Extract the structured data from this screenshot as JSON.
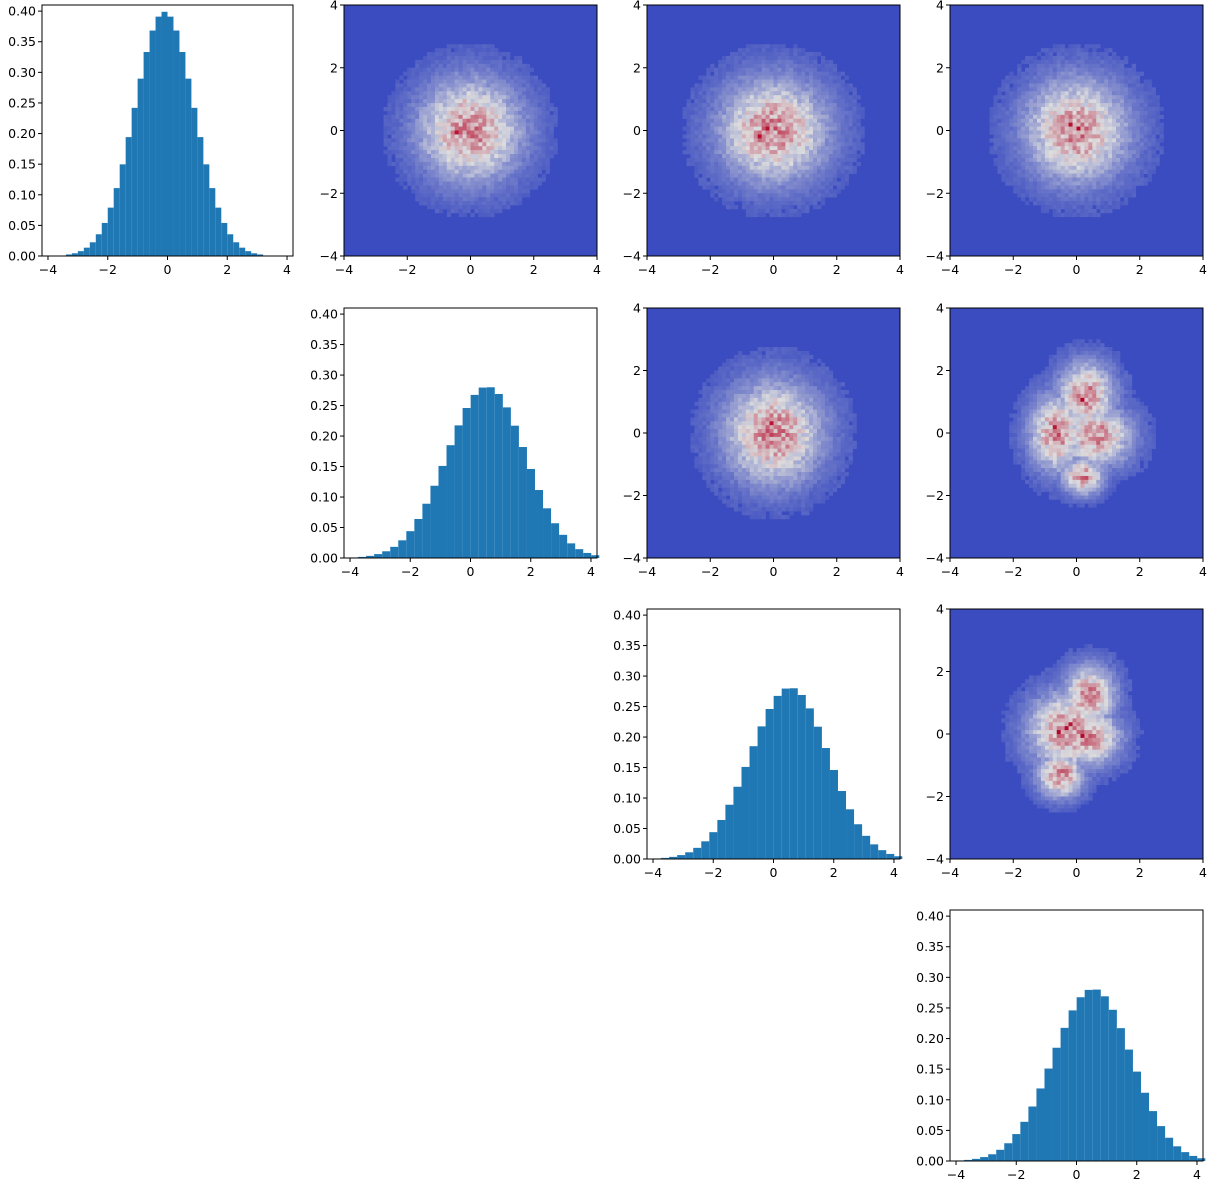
{
  "colors": {
    "hist_bar": "#1f77b4",
    "heatmap_low": "#3b4cc0",
    "heatmap_mid": "#dddddd",
    "heatmap_high": "#b40426"
  },
  "chart_data": [
    {
      "id": "hist-1",
      "type": "bar",
      "row": 0,
      "col": 0,
      "bin_edges_start": -3.6,
      "bin_width": 0.2,
      "values": [
        0.0,
        0.0025,
        0.0044,
        0.0079,
        0.0136,
        0.0224,
        0.0355,
        0.054,
        0.079,
        0.1109,
        0.1497,
        0.1942,
        0.242,
        0.2897,
        0.3332,
        0.3683,
        0.391,
        0.3989,
        0.391,
        0.3683,
        0.3332,
        0.2897,
        0.242,
        0.1942,
        0.1497,
        0.1109,
        0.079,
        0.054,
        0.0355,
        0.0224,
        0.0136,
        0.0079,
        0.0044,
        0.0025,
        0.0
      ],
      "xlim": [
        -4.2,
        4.2
      ],
      "ylim": [
        0,
        0.41
      ],
      "xticks": [
        "−4",
        "−2",
        "0",
        "2",
        "4"
      ],
      "yticks": [
        "0.00",
        "0.05",
        "0.10",
        "0.15",
        "0.20",
        "0.25",
        "0.30",
        "0.35",
        "0.40"
      ]
    },
    {
      "id": "hist-2",
      "type": "bar",
      "row": 1,
      "col": 1,
      "bin_edges_start": -4.0,
      "bin_width": 0.267,
      "values": [
        0.0009,
        0.0018,
        0.0035,
        0.0064,
        0.011,
        0.0183,
        0.029,
        0.044,
        0.064,
        0.089,
        0.1185,
        0.151,
        0.185,
        0.2175,
        0.246,
        0.2675,
        0.2795,
        0.28,
        0.269,
        0.247,
        0.217,
        0.182,
        0.146,
        0.1115,
        0.0815,
        0.057,
        0.038,
        0.024,
        0.0145,
        0.0083,
        0.0045
      ],
      "xlim": [
        -4.2,
        4.2
      ],
      "ylim": [
        0,
        0.41
      ],
      "xticks": [
        "−4",
        "−2",
        "0",
        "2",
        "4"
      ],
      "yticks": [
        "0.00",
        "0.05",
        "0.10",
        "0.15",
        "0.20",
        "0.25",
        "0.30",
        "0.35",
        "0.40"
      ]
    },
    {
      "id": "hist-3",
      "type": "bar",
      "row": 2,
      "col": 2,
      "bin_edges_start": -4.0,
      "bin_width": 0.267,
      "values": [
        0.0009,
        0.0018,
        0.0035,
        0.0064,
        0.011,
        0.0183,
        0.029,
        0.044,
        0.064,
        0.089,
        0.1185,
        0.151,
        0.185,
        0.2175,
        0.246,
        0.2675,
        0.2795,
        0.28,
        0.269,
        0.247,
        0.217,
        0.182,
        0.146,
        0.1115,
        0.0815,
        0.057,
        0.038,
        0.024,
        0.0145,
        0.0083,
        0.0045
      ],
      "xlim": [
        -4.2,
        4.2
      ],
      "ylim": [
        0,
        0.41
      ],
      "xticks": [
        "−4",
        "−2",
        "0",
        "2",
        "4"
      ],
      "yticks": [
        "0.00",
        "0.05",
        "0.10",
        "0.15",
        "0.20",
        "0.25",
        "0.30",
        "0.35",
        "0.40"
      ]
    },
    {
      "id": "hist-4",
      "type": "bar",
      "row": 3,
      "col": 3,
      "bin_edges_start": -4.0,
      "bin_width": 0.267,
      "values": [
        0.0009,
        0.0018,
        0.0035,
        0.0064,
        0.011,
        0.0183,
        0.029,
        0.044,
        0.064,
        0.089,
        0.1185,
        0.151,
        0.185,
        0.2175,
        0.246,
        0.2675,
        0.2795,
        0.28,
        0.269,
        0.247,
        0.217,
        0.182,
        0.146,
        0.1115,
        0.0815,
        0.057,
        0.038,
        0.024,
        0.0145,
        0.0083,
        0.0045
      ],
      "xlim": [
        -4.2,
        4.2
      ],
      "ylim": [
        0,
        0.41
      ],
      "xticks": [
        "−4",
        "−2",
        "0",
        "2",
        "4"
      ],
      "yticks": [
        "0.00",
        "0.05",
        "0.10",
        "0.15",
        "0.20",
        "0.25",
        "0.30",
        "0.35",
        "0.40"
      ]
    },
    {
      "id": "heatmap-1-2",
      "type": "heatmap",
      "row": 0,
      "col": 1,
      "xlim": [
        -4,
        4
      ],
      "ylim": [
        -4,
        4
      ],
      "bins": 64,
      "structure": [
        {
          "center": [
            0,
            0
          ],
          "sigma": [
            1.0,
            1.0
          ]
        }
      ],
      "xticks": [
        "−4",
        "−2",
        "0",
        "2",
        "4"
      ],
      "yticks": [
        "−4",
        "−2",
        "0",
        "2",
        "4"
      ]
    },
    {
      "id": "heatmap-1-3",
      "type": "heatmap",
      "row": 0,
      "col": 2,
      "xlim": [
        -4,
        4
      ],
      "ylim": [
        -4,
        4
      ],
      "bins": 64,
      "structure": [
        {
          "center": [
            0,
            0
          ],
          "sigma": [
            1.05,
            1.0
          ]
        }
      ],
      "xticks": [
        "−4",
        "−2",
        "0",
        "2",
        "4"
      ],
      "yticks": [
        "−4",
        "−2",
        "0",
        "2",
        "4"
      ]
    },
    {
      "id": "heatmap-1-4",
      "type": "heatmap",
      "row": 0,
      "col": 3,
      "xlim": [
        -4,
        4
      ],
      "ylim": [
        -4,
        4
      ],
      "bins": 64,
      "structure": [
        {
          "center": [
            0,
            0
          ],
          "sigma": [
            1.0,
            1.0
          ]
        }
      ],
      "xticks": [
        "−4",
        "−2",
        "0",
        "2",
        "4"
      ],
      "yticks": [
        "−4",
        "−2",
        "0",
        "2",
        "4"
      ]
    },
    {
      "id": "heatmap-2-3",
      "type": "heatmap",
      "row": 1,
      "col": 2,
      "xlim": [
        -4,
        4
      ],
      "ylim": [
        -4,
        4
      ],
      "bins": 64,
      "structure": [
        {
          "center": [
            0,
            0
          ],
          "sigma": [
            0.95,
            1.0
          ]
        }
      ],
      "xticks": [
        "−4",
        "−2",
        "0",
        "2",
        "4"
      ],
      "yticks": [
        "−4",
        "−2",
        "0",
        "2",
        "4"
      ]
    },
    {
      "id": "heatmap-2-4",
      "type": "heatmap",
      "row": 1,
      "col": 3,
      "xlim": [
        -4,
        4
      ],
      "ylim": [
        -4,
        4
      ],
      "bins": 64,
      "structure": [
        {
          "center": [
            -0.6,
            0.0
          ],
          "sigma": [
            0.55,
            0.75
          ]
        },
        {
          "center": [
            0.3,
            1.2
          ],
          "sigma": [
            0.55,
            0.65
          ]
        },
        {
          "center": [
            0.2,
            -1.4
          ],
          "sigma": [
            0.4,
            0.35
          ]
        },
        {
          "center": [
            0.6,
            -0.1
          ],
          "sigma": [
            0.7,
            0.6
          ]
        }
      ],
      "xticks": [
        "−4",
        "−2",
        "0",
        "2",
        "4"
      ],
      "yticks": [
        "−4",
        "−2",
        "0",
        "2",
        "4"
      ]
    },
    {
      "id": "heatmap-3-4",
      "type": "heatmap",
      "row": 2,
      "col": 3,
      "xlim": [
        -4,
        4
      ],
      "ylim": [
        -4,
        4
      ],
      "bins": 64,
      "structure": [
        {
          "center": [
            -0.3,
            0.1
          ],
          "sigma": [
            0.75,
            0.75
          ]
        },
        {
          "center": [
            0.4,
            1.2
          ],
          "sigma": [
            0.5,
            0.6
          ]
        },
        {
          "center": [
            -0.5,
            -1.3
          ],
          "sigma": [
            0.45,
            0.45
          ]
        },
        {
          "center": [
            0.4,
            -0.1
          ],
          "sigma": [
            0.6,
            0.55
          ]
        }
      ],
      "xticks": [
        "−4",
        "−2",
        "0",
        "2",
        "4"
      ],
      "yticks": [
        "−4",
        "−2",
        "0",
        "2",
        "4"
      ]
    }
  ]
}
